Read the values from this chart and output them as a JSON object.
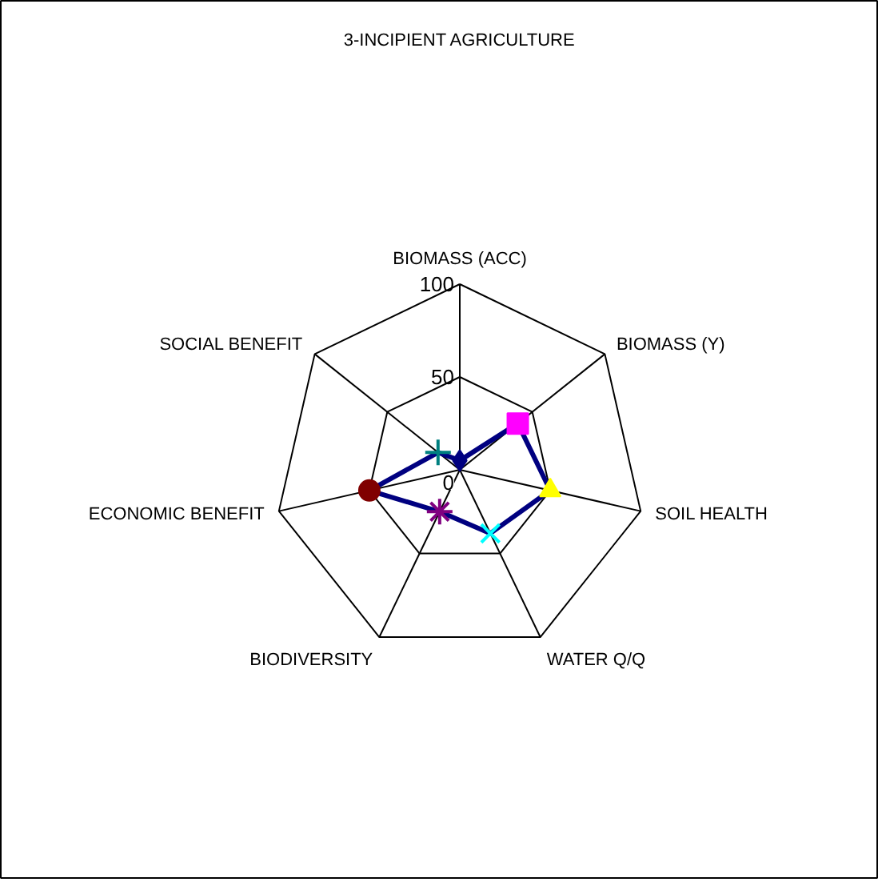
{
  "chart_data": {
    "type": "radar",
    "title": "3-INCIPIENT AGRICULTURE",
    "categories": [
      "BIOMASS (ACC)",
      "BIOMASS (Y)",
      "SOIL HEALTH",
      "WATER Q/Q",
      "BIODIVERSITY",
      "ECONOMIC BENEFIT",
      "SOCIAL BENEFIT"
    ],
    "series": [
      {
        "color": "#000080",
        "values": [
          5,
          40,
          50,
          38,
          25,
          50,
          15
        ],
        "colors": [
          "#000080",
          "#ff00ff",
          "#ffff00",
          "#00ffff",
          "#800080",
          "#800000",
          "#008080"
        ],
        "marker": [
          "diamond",
          "square",
          "triangle",
          "x",
          "asterisk",
          "circle",
          "cross"
        ]
      }
    ],
    "ylim": [
      0,
      100
    ],
    "yticks": [
      0,
      50,
      100
    ],
    "grid": true
  }
}
